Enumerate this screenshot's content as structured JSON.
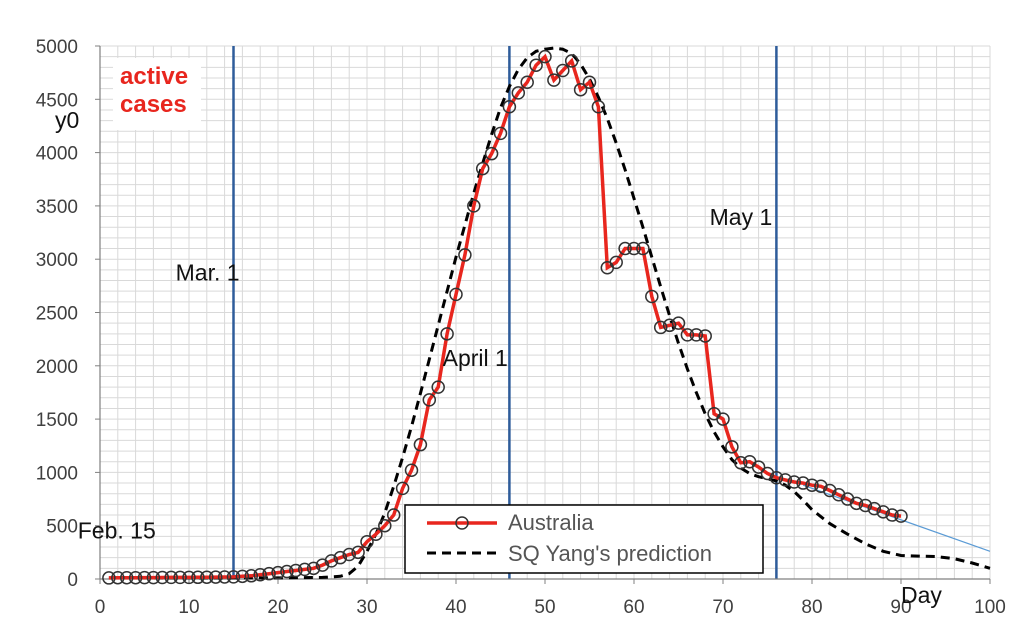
{
  "chart_data": {
    "type": "line",
    "title": "",
    "xlabel": "Day",
    "ylabel": "y0",
    "xlim": [
      0,
      100
    ],
    "ylim": [
      0,
      5000
    ],
    "x_ticks": [
      0,
      10,
      20,
      30,
      40,
      50,
      60,
      70,
      80,
      90,
      100
    ],
    "y_ticks": [
      0,
      500,
      1000,
      1500,
      2000,
      2500,
      3000,
      3500,
      4000,
      4500,
      5000
    ],
    "grid": true,
    "legend_position": "bottom-center",
    "in_plot_label": [
      "active",
      "cases"
    ],
    "colors": {
      "australia": "#e8261e",
      "prediction": "#000000",
      "vline": "#2e5c9a",
      "trend": "#5b9bd5",
      "grid": "#d9d9d9"
    },
    "vlines": [
      {
        "x": 15,
        "label": "Mar. 1",
        "label_x": 8.5,
        "label_y": 2800
      },
      {
        "x": 46,
        "label": "April 1",
        "label_x": 38.5,
        "label_y": 2000
      },
      {
        "x": 76,
        "label": "May 1",
        "label_x": 68.5,
        "label_y": 3320
      }
    ],
    "annotations": [
      {
        "text": "Feb. 15",
        "x": -2.5,
        "y": 380
      }
    ],
    "series": [
      {
        "name": "Australia",
        "style": "line-with-circles",
        "x": [
          1,
          2,
          3,
          4,
          5,
          6,
          7,
          8,
          9,
          10,
          11,
          12,
          13,
          14,
          15,
          16,
          17,
          18,
          19,
          20,
          21,
          22,
          23,
          24,
          25,
          26,
          27,
          28,
          29,
          30,
          31,
          32,
          33,
          34,
          35,
          36,
          37,
          38,
          39,
          40,
          41,
          42,
          43,
          44,
          45,
          46,
          47,
          48,
          49,
          50,
          51,
          52,
          53,
          54,
          55,
          56,
          57,
          58,
          59,
          60,
          61,
          62,
          63,
          64,
          65,
          66,
          67,
          68,
          69,
          70,
          71,
          72,
          73,
          74,
          75,
          76,
          77,
          78,
          79,
          80,
          81,
          82,
          83,
          84,
          85,
          86,
          87,
          88,
          89,
          90
        ],
        "y": [
          10,
          12,
          12,
          12,
          13,
          13,
          14,
          15,
          15,
          15,
          16,
          17,
          18,
          19,
          20,
          25,
          30,
          40,
          50,
          60,
          70,
          80,
          90,
          100,
          130,
          170,
          200,
          230,
          250,
          350,
          420,
          500,
          600,
          850,
          1020,
          1260,
          1680,
          1800,
          2300,
          2670,
          3040,
          3500,
          3850,
          3990,
          4180,
          4430,
          4560,
          4660,
          4820,
          4900,
          4680,
          4770,
          4860,
          4590,
          4660,
          4430,
          2920,
          2970,
          3100,
          3100,
          3100,
          2650,
          2360,
          2380,
          2400,
          2290,
          2290,
          2280,
          1550,
          1500,
          1240,
          1090,
          1100,
          1050,
          990,
          950,
          930,
          910,
          900,
          880,
          870,
          830,
          790,
          750,
          710,
          690,
          660,
          630,
          600,
          590
        ]
      },
      {
        "name": "SQ Yang's prediction",
        "style": "dashed",
        "x": [
          1,
          5,
          10,
          15,
          20,
          25,
          27,
          28,
          29,
          30,
          31,
          32,
          33,
          34,
          35,
          36,
          37,
          38,
          39,
          40,
          41,
          42,
          43,
          44,
          45,
          46,
          47,
          48,
          49,
          50,
          51,
          52,
          53,
          54,
          55,
          56,
          57,
          58,
          59,
          60,
          61,
          62,
          63,
          64,
          65,
          66,
          67,
          68,
          69,
          70,
          71,
          72,
          73,
          74,
          75,
          76,
          77,
          78,
          79,
          80,
          82,
          84,
          86,
          88,
          90,
          92,
          94,
          96,
          98,
          100
        ],
        "y": [
          10,
          10,
          10,
          10,
          10,
          15,
          25,
          50,
          120,
          260,
          420,
          620,
          870,
          1140,
          1430,
          1740,
          2060,
          2380,
          2700,
          3020,
          3320,
          3620,
          3900,
          4170,
          4420,
          4620,
          4780,
          4890,
          4950,
          4970,
          4980,
          4970,
          4930,
          4830,
          4690,
          4520,
          4320,
          4090,
          3840,
          3570,
          3300,
          3020,
          2740,
          2470,
          2210,
          1970,
          1750,
          1550,
          1380,
          1240,
          1120,
          1040,
          990,
          960,
          940,
          920,
          880,
          820,
          740,
          650,
          520,
          420,
          330,
          260,
          220,
          215,
          210,
          190,
          150,
          100
        ]
      }
    ],
    "trend_line": {
      "x": [
        79,
        100
      ],
      "y": [
        880,
        260
      ]
    }
  }
}
